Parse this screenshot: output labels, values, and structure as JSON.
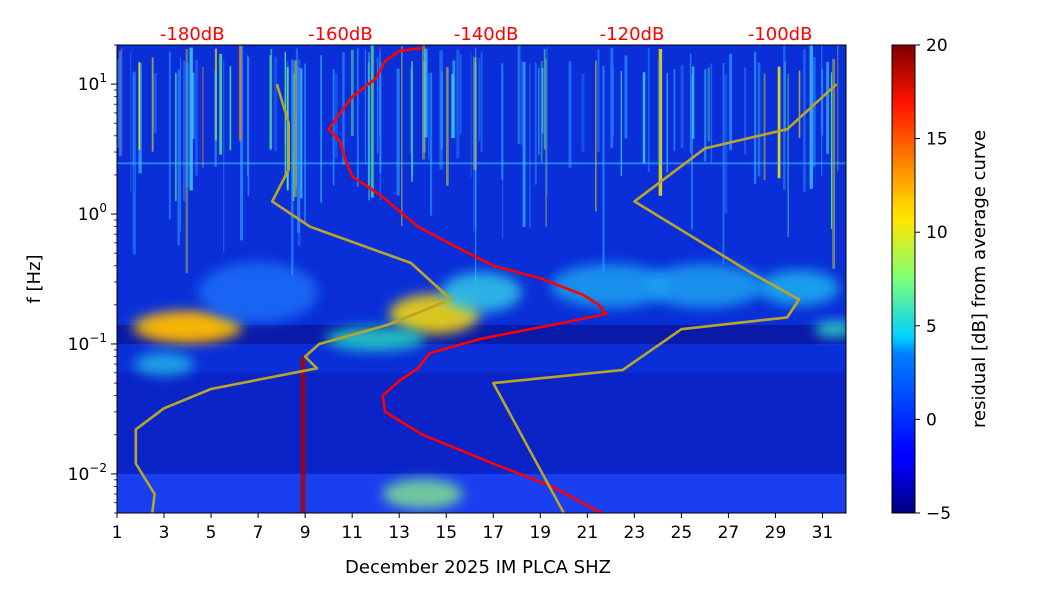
{
  "chart_data": {
    "type": "heatmap",
    "title": "",
    "xlabel": "December 2025 IM PLCA  SHZ",
    "ylabel": "f [Hz]",
    "x_range": [
      1,
      32
    ],
    "x_ticks": [
      "1",
      "3",
      "5",
      "7",
      "9",
      "11",
      "13",
      "15",
      "17",
      "19",
      "21",
      "23",
      "25",
      "27",
      "29",
      "31"
    ],
    "y_scale": "log",
    "y_range": [
      0.005,
      20
    ],
    "y_ticks": [
      {
        "value": 0.01,
        "base": "10",
        "exp": "−2"
      },
      {
        "value": 0.1,
        "base": "10",
        "exp": "−1"
      },
      {
        "value": 1,
        "base": "10",
        "exp": "0"
      },
      {
        "value": 10,
        "base": "10",
        "exp": "1"
      }
    ],
    "top_labels": {
      "color": "#ff0000",
      "items": [
        {
          "x": 4.2,
          "text": "-180dB"
        },
        {
          "x": 10.5,
          "text": "-160dB"
        },
        {
          "x": 16.7,
          "text": "-140dB"
        },
        {
          "x": 22.9,
          "text": "-120dB"
        },
        {
          "x": 29.2,
          "text": "-100dB"
        }
      ]
    },
    "colorbar": {
      "label": "residual [dB] from average curve",
      "range": [
        -5,
        20
      ],
      "ticks": [
        "−5",
        "0",
        "5",
        "10",
        "15",
        "20"
      ],
      "tick_values": [
        -5,
        0,
        5,
        10,
        15,
        20
      ],
      "colormap": "jet"
    },
    "grid": false,
    "series": [
      {
        "color": "#ff0000",
        "points": [
          [
            21.6,
            0.005
          ],
          [
            19.5,
            0.008
          ],
          [
            17.0,
            0.012
          ],
          [
            14.0,
            0.02
          ],
          [
            12.4,
            0.03
          ],
          [
            12.3,
            0.04
          ],
          [
            13.0,
            0.052
          ],
          [
            13.8,
            0.065
          ],
          [
            14.3,
            0.085
          ],
          [
            16.5,
            0.11
          ],
          [
            19.5,
            0.14
          ],
          [
            21.8,
            0.17
          ],
          [
            21.5,
            0.2
          ],
          [
            20.8,
            0.24
          ],
          [
            19.0,
            0.32
          ],
          [
            17.0,
            0.4
          ],
          [
            15.5,
            0.55
          ],
          [
            13.8,
            0.8
          ],
          [
            12.2,
            1.4
          ],
          [
            11.0,
            1.95
          ],
          [
            10.8,
            2.4
          ],
          [
            10.6,
            3.0
          ],
          [
            10.5,
            3.6
          ],
          [
            10.0,
            4.5
          ],
          [
            10.5,
            6.0
          ],
          [
            11.0,
            8.0
          ],
          [
            12.0,
            11.0
          ],
          [
            12.4,
            15.0
          ],
          [
            13.0,
            18.0
          ],
          [
            14.0,
            19.0
          ]
        ]
      },
      {
        "color": "#b8a52a",
        "points": [
          [
            2.5,
            0.005
          ],
          [
            2.6,
            0.007
          ],
          [
            1.8,
            0.012
          ],
          [
            1.8,
            0.022
          ],
          [
            3.0,
            0.032
          ],
          [
            5.0,
            0.045
          ],
          [
            9.5,
            0.065
          ],
          [
            9.0,
            0.08
          ],
          [
            9.6,
            0.1
          ],
          [
            12.5,
            0.14
          ],
          [
            15.2,
            0.22
          ],
          [
            13.5,
            0.42
          ],
          [
            9.2,
            0.8
          ],
          [
            7.6,
            1.25
          ],
          [
            8.3,
            2.2
          ],
          [
            8.3,
            5.0
          ],
          [
            7.8,
            10.0
          ]
        ]
      },
      {
        "color": "#b8a52a",
        "points": [
          [
            20.0,
            0.005
          ],
          [
            17.0,
            0.05
          ],
          [
            22.5,
            0.063
          ],
          [
            25.0,
            0.13
          ],
          [
            29.5,
            0.16
          ],
          [
            30.0,
            0.22
          ],
          [
            28.0,
            0.35
          ],
          [
            23.0,
            1.25
          ],
          [
            26.0,
            3.2
          ],
          [
            29.5,
            4.5
          ],
          [
            31.6,
            10.0
          ]
        ]
      }
    ]
  }
}
